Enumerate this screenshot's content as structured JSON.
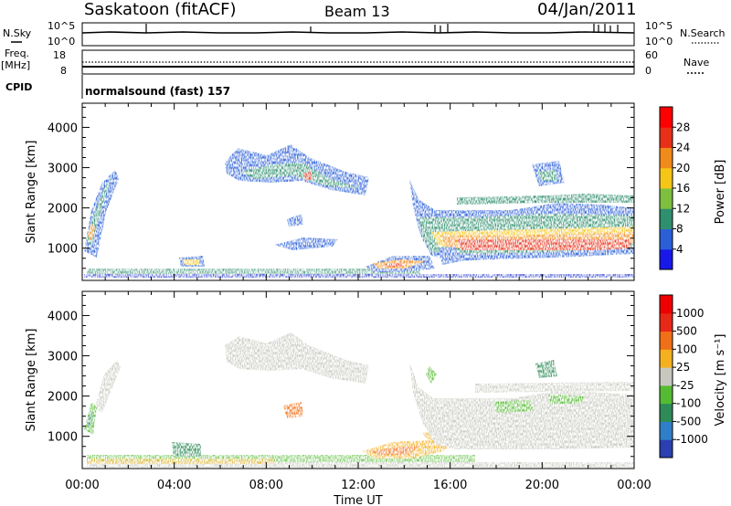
{
  "header": {
    "station": "Saskatoon (fitACF)",
    "beam": "Beam 13",
    "date": "04/Jan/2011"
  },
  "strip": {
    "nsky_label": "N.Sky",
    "nsky_ticks": [
      "10^5",
      "10^0"
    ],
    "nsearch_label": "N.Search",
    "freq_label": "Freq.",
    "freq_unit": "[MHz]",
    "freq_ticks": [
      "18",
      "8"
    ],
    "nave_label": "Nave",
    "nave_ticks": [
      "60",
      "0"
    ],
    "cpid_label": "CPID",
    "cpid_value": "normalsound (fast) 157"
  },
  "chart_data": [
    {
      "type": "heatmap",
      "panel": "power",
      "ylabel": "Slant Range [km]",
      "yticks": [
        "1000",
        "2000",
        "3000",
        "4000"
      ],
      "ylim": [
        200,
        4600
      ],
      "xlim": [
        0,
        24
      ],
      "colorbar": {
        "label": "Power [dB]",
        "ticks": [
          "4",
          "8",
          "12",
          "16",
          "20",
          "24",
          "28"
        ],
        "colors": [
          "#1818e8",
          "#2a5fd8",
          "#2f8f6e",
          "#7fbf3f",
          "#f5c518",
          "#f08a18",
          "#e83018",
          "#ff0000"
        ]
      }
    },
    {
      "type": "heatmap",
      "panel": "velocity",
      "ylabel": "Slant Range [km]",
      "yticks": [
        "1000",
        "2000",
        "3000",
        "4000"
      ],
      "ylim": [
        200,
        4600
      ],
      "xlim": [
        0,
        24
      ],
      "xlabel": "Time UT",
      "xticks": [
        "00:00",
        "04:00",
        "08:00",
        "12:00",
        "16:00",
        "20:00",
        "00:00"
      ],
      "colorbar": {
        "label": "Velocity [m s⁻¹]",
        "ticks": [
          "1000",
          "500",
          "100",
          "25",
          "-25",
          "-100",
          "-500",
          "-1000"
        ],
        "colors": [
          "#2b3fb0",
          "#2f7fc8",
          "#2e8b57",
          "#55bb33",
          "#c8c8c0",
          "#f5b020",
          "#f07018",
          "#e82818",
          "#ee0000"
        ]
      }
    }
  ]
}
